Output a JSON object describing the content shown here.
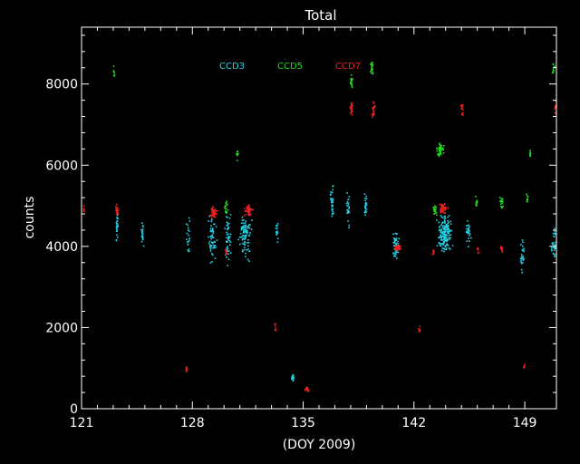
{
  "chart_data": {
    "type": "scatter",
    "title": "Total",
    "xlabel": "(DOY 2009)",
    "ylabel": "counts",
    "xlim": [
      121,
      151
    ],
    "ylim": [
      0,
      9400
    ],
    "xticks": [
      121,
      128,
      135,
      142,
      149
    ],
    "yticks": [
      0,
      2000,
      4000,
      6000,
      8000
    ],
    "x_tick_labels": [
      "121",
      "128",
      "135",
      "142",
      "149"
    ],
    "y_tick_labels": [
      "0",
      "2000",
      "4000",
      "6000",
      "8000"
    ],
    "grid": false,
    "legend_position": "top-center",
    "series": [
      {
        "name": "CCD3",
        "color": "#22d3e6",
        "clusters": [
          {
            "x": 123.2,
            "y": 4500,
            "dx": 0.15,
            "dy": 550,
            "n": 28
          },
          {
            "x": 124.8,
            "y": 4300,
            "dx": 0.12,
            "dy": 400,
            "n": 22
          },
          {
            "x": 127.7,
            "y": 4300,
            "dx": 0.15,
            "dy": 600,
            "n": 20
          },
          {
            "x": 129.2,
            "y": 4200,
            "dx": 0.35,
            "dy": 700,
            "n": 60
          },
          {
            "x": 130.2,
            "y": 4300,
            "dx": 0.25,
            "dy": 800,
            "n": 50
          },
          {
            "x": 131.3,
            "y": 4300,
            "dx": 0.5,
            "dy": 750,
            "n": 90
          },
          {
            "x": 133.3,
            "y": 4400,
            "dx": 0.1,
            "dy": 450,
            "n": 18
          },
          {
            "x": 134.3,
            "y": 780,
            "dx": 0.1,
            "dy": 110,
            "n": 20
          },
          {
            "x": 136.8,
            "y": 5100,
            "dx": 0.15,
            "dy": 550,
            "n": 30
          },
          {
            "x": 137.8,
            "y": 4900,
            "dx": 0.12,
            "dy": 500,
            "n": 26
          },
          {
            "x": 138.9,
            "y": 5000,
            "dx": 0.12,
            "dy": 500,
            "n": 26
          },
          {
            "x": 140.8,
            "y": 4000,
            "dx": 0.3,
            "dy": 450,
            "n": 60
          },
          {
            "x": 143.9,
            "y": 4300,
            "dx": 0.6,
            "dy": 650,
            "n": 160
          },
          {
            "x": 145.4,
            "y": 4400,
            "dx": 0.2,
            "dy": 500,
            "n": 30
          },
          {
            "x": 148.8,
            "y": 3800,
            "dx": 0.15,
            "dy": 500,
            "n": 26
          },
          {
            "x": 150.8,
            "y": 4100,
            "dx": 0.2,
            "dy": 550,
            "n": 30
          }
        ]
      },
      {
        "name": "CCD5",
        "color": "#22dd22",
        "clusters": [
          {
            "x": 123.0,
            "y": 8300,
            "dx": 0.05,
            "dy": 250,
            "n": 8
          },
          {
            "x": 130.1,
            "y": 5000,
            "dx": 0.15,
            "dy": 250,
            "n": 16
          },
          {
            "x": 130.8,
            "y": 6300,
            "dx": 0.08,
            "dy": 200,
            "n": 10
          },
          {
            "x": 138.0,
            "y": 8100,
            "dx": 0.12,
            "dy": 250,
            "n": 20
          },
          {
            "x": 139.3,
            "y": 8400,
            "dx": 0.12,
            "dy": 300,
            "n": 22
          },
          {
            "x": 143.6,
            "y": 6400,
            "dx": 0.3,
            "dy": 250,
            "n": 45
          },
          {
            "x": 143.3,
            "y": 4900,
            "dx": 0.2,
            "dy": 200,
            "n": 16
          },
          {
            "x": 145.9,
            "y": 5100,
            "dx": 0.1,
            "dy": 200,
            "n": 12
          },
          {
            "x": 147.5,
            "y": 5100,
            "dx": 0.15,
            "dy": 200,
            "n": 16
          },
          {
            "x": 149.3,
            "y": 6300,
            "dx": 0.08,
            "dy": 150,
            "n": 8
          },
          {
            "x": 149.1,
            "y": 5200,
            "dx": 0.08,
            "dy": 200,
            "n": 8
          },
          {
            "x": 150.8,
            "y": 8400,
            "dx": 0.15,
            "dy": 200,
            "n": 14
          }
        ]
      },
      {
        "name": "CCD7",
        "color": "#ee2222",
        "clusters": [
          {
            "x": 121.1,
            "y": 4900,
            "dx": 0.05,
            "dy": 150,
            "n": 6
          },
          {
            "x": 123.2,
            "y": 4900,
            "dx": 0.12,
            "dy": 200,
            "n": 16
          },
          {
            "x": 127.6,
            "y": 1000,
            "dx": 0.08,
            "dy": 100,
            "n": 10
          },
          {
            "x": 129.3,
            "y": 4850,
            "dx": 0.3,
            "dy": 180,
            "n": 40
          },
          {
            "x": 131.5,
            "y": 4900,
            "dx": 0.35,
            "dy": 180,
            "n": 45
          },
          {
            "x": 130.1,
            "y": 3900,
            "dx": 0.1,
            "dy": 200,
            "n": 10
          },
          {
            "x": 133.2,
            "y": 2000,
            "dx": 0.08,
            "dy": 150,
            "n": 8
          },
          {
            "x": 135.2,
            "y": 500,
            "dx": 0.15,
            "dy": 80,
            "n": 22
          },
          {
            "x": 138.0,
            "y": 7400,
            "dx": 0.12,
            "dy": 250,
            "n": 24
          },
          {
            "x": 139.4,
            "y": 7400,
            "dx": 0.12,
            "dy": 250,
            "n": 24
          },
          {
            "x": 140.9,
            "y": 4000,
            "dx": 0.25,
            "dy": 120,
            "n": 40
          },
          {
            "x": 142.3,
            "y": 2000,
            "dx": 0.08,
            "dy": 120,
            "n": 8
          },
          {
            "x": 143.8,
            "y": 4950,
            "dx": 0.35,
            "dy": 200,
            "n": 45
          },
          {
            "x": 143.2,
            "y": 3900,
            "dx": 0.1,
            "dy": 150,
            "n": 8
          },
          {
            "x": 145.0,
            "y": 7400,
            "dx": 0.1,
            "dy": 300,
            "n": 14
          },
          {
            "x": 146.0,
            "y": 3900,
            "dx": 0.08,
            "dy": 150,
            "n": 8
          },
          {
            "x": 147.5,
            "y": 3950,
            "dx": 0.12,
            "dy": 150,
            "n": 14
          },
          {
            "x": 148.9,
            "y": 1050,
            "dx": 0.08,
            "dy": 100,
            "n": 8
          },
          {
            "x": 150.9,
            "y": 7400,
            "dx": 0.15,
            "dy": 250,
            "n": 10
          }
        ]
      }
    ]
  }
}
